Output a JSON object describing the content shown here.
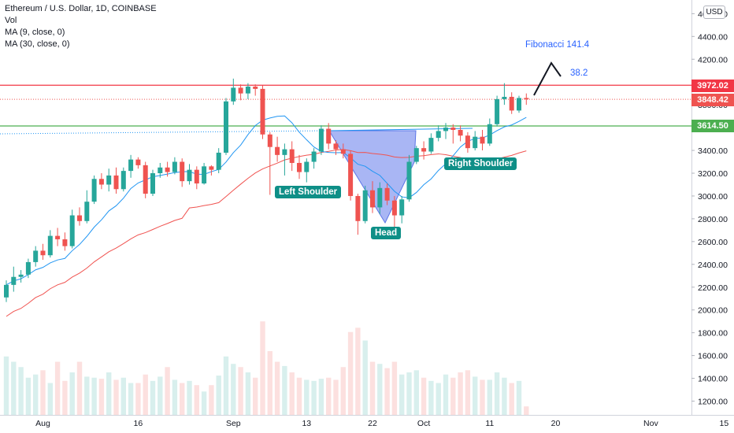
{
  "legend": {
    "title": "Ethereum / U.S. Dollar, 1D, COINBASE",
    "vol": "Vol",
    "ma9": "MA (9, close, 0)",
    "ma30": "MA (30, close, 0)"
  },
  "currency_button": "USD",
  "price_labels": {
    "red": "3972.02",
    "current": "3848.42",
    "green": "3614.50"
  },
  "annotations": {
    "left_shoulder": "Left Shoulder",
    "head": "Head",
    "right_shoulder": "Right Shoulder",
    "fib_main": "Fibonacci 141.4",
    "fib_small": "38.2"
  },
  "colors": {
    "up": "#26a69a",
    "down": "#ef5350",
    "ma9": "#2196f3",
    "ma30": "#f05350",
    "resistance": "#f23645",
    "support": "#4caf50",
    "pattern_fill": "#8c9ef0",
    "label_teal": "#0e8f87"
  },
  "chart_data": {
    "type": "candlestick",
    "symbol": "Ethereum / U.S. Dollar",
    "interval": "1D",
    "exchange": "COINBASE",
    "x_tick_labels": [
      "Aug",
      "16",
      "Sep",
      "13",
      "22",
      "Oct",
      "11",
      "20",
      "Nov",
      "15"
    ],
    "y_tick_labels": [
      "1200.00",
      "1400.00",
      "1600.00",
      "1800.00",
      "2000.00",
      "2200.00",
      "2400.00",
      "2600.00",
      "2800.00",
      "3000.00",
      "3200.00",
      "3400.00",
      "3600.00",
      "3800.00",
      "4000.00",
      "4200.00",
      "4400.00",
      "4600.00"
    ],
    "ylim": [
      1100,
      4650
    ],
    "ohlc": [
      [
        2110,
        2260,
        2070,
        2220
      ],
      [
        2220,
        2380,
        2160,
        2290
      ],
      [
        2290,
        2350,
        2240,
        2310
      ],
      [
        2310,
        2450,
        2280,
        2420
      ],
      [
        2420,
        2560,
        2380,
        2520
      ],
      [
        2520,
        2580,
        2440,
        2480
      ],
      [
        2480,
        2700,
        2460,
        2650
      ],
      [
        2650,
        2720,
        2560,
        2620
      ],
      [
        2620,
        2680,
        2520,
        2560
      ],
      [
        2560,
        2880,
        2540,
        2830
      ],
      [
        2830,
        2900,
        2740,
        2780
      ],
      [
        2780,
        3050,
        2760,
        2950
      ],
      [
        2950,
        3180,
        2930,
        3150
      ],
      [
        3150,
        3200,
        3060,
        3100
      ],
      [
        3100,
        3240,
        3040,
        3180
      ],
      [
        3180,
        3250,
        3020,
        3060
      ],
      [
        3060,
        3250,
        3040,
        3220
      ],
      [
        3220,
        3360,
        3160,
        3320
      ],
      [
        3320,
        3340,
        3240,
        3270
      ],
      [
        3270,
        3300,
        2980,
        3020
      ],
      [
        3020,
        3230,
        3000,
        3200
      ],
      [
        3200,
        3290,
        3160,
        3250
      ],
      [
        3250,
        3300,
        3170,
        3210
      ],
      [
        3210,
        3340,
        3190,
        3300
      ],
      [
        3300,
        3330,
        3080,
        3130
      ],
      [
        3130,
        3280,
        3100,
        3230
      ],
      [
        3230,
        3260,
        3060,
        3110
      ],
      [
        3110,
        3290,
        3100,
        3260
      ],
      [
        3260,
        3270,
        3180,
        3230
      ],
      [
        3230,
        3420,
        3200,
        3380
      ],
      [
        3380,
        3860,
        3360,
        3830
      ],
      [
        3830,
        4030,
        3800,
        3950
      ],
      [
        3950,
        3980,
        3840,
        3900
      ],
      [
        3900,
        3990,
        3850,
        3960
      ],
      [
        3960,
        3980,
        3880,
        3940
      ],
      [
        3940,
        3970,
        3500,
        3540
      ],
      [
        3540,
        3560,
        3010,
        3430
      ],
      [
        3430,
        3520,
        3300,
        3360
      ],
      [
        3360,
        3460,
        3180,
        3410
      ],
      [
        3410,
        3480,
        3220,
        3290
      ],
      [
        3290,
        3360,
        3150,
        3210
      ],
      [
        3210,
        3330,
        3120,
        3300
      ],
      [
        3300,
        3420,
        3240,
        3390
      ],
      [
        3390,
        3620,
        3360,
        3590
      ],
      [
        3590,
        3640,
        3410,
        3460
      ],
      [
        3460,
        3490,
        3360,
        3410
      ],
      [
        3410,
        3460,
        3330,
        3370
      ],
      [
        3370,
        3400,
        2960,
        3000
      ],
      [
        3000,
        3020,
        2660,
        2780
      ],
      [
        2780,
        3090,
        2760,
        3050
      ],
      [
        3050,
        3130,
        2850,
        2900
      ],
      [
        2900,
        3120,
        2840,
        3070
      ],
      [
        3070,
        3110,
        2920,
        2960
      ],
      [
        2960,
        3000,
        2730,
        2830
      ],
      [
        2830,
        3000,
        2760,
        2970
      ],
      [
        2970,
        3360,
        2950,
        3300
      ],
      [
        3300,
        3440,
        3280,
        3420
      ],
      [
        3420,
        3480,
        3320,
        3390
      ],
      [
        3390,
        3550,
        3370,
        3510
      ],
      [
        3510,
        3620,
        3480,
        3570
      ],
      [
        3570,
        3640,
        3500,
        3600
      ],
      [
        3600,
        3630,
        3460,
        3580
      ],
      [
        3580,
        3620,
        3480,
        3530
      ],
      [
        3530,
        3560,
        3380,
        3420
      ],
      [
        3420,
        3570,
        3400,
        3520
      ],
      [
        3520,
        3580,
        3400,
        3460
      ],
      [
        3460,
        3680,
        3440,
        3630
      ],
      [
        3630,
        3880,
        3610,
        3850
      ],
      [
        3850,
        3990,
        3800,
        3870
      ],
      [
        3870,
        3910,
        3720,
        3750
      ],
      [
        3750,
        3880,
        3730,
        3860
      ],
      [
        3860,
        3900,
        3800,
        3848.42
      ]
    ],
    "volume_relative": [
      0.55,
      0.5,
      0.45,
      0.35,
      0.38,
      0.42,
      0.3,
      0.5,
      0.32,
      0.4,
      0.5,
      0.36,
      0.35,
      0.34,
      0.4,
      0.33,
      0.35,
      0.3,
      0.3,
      0.38,
      0.32,
      0.36,
      0.45,
      0.33,
      0.3,
      0.32,
      0.28,
      0.22,
      0.28,
      0.37,
      0.55,
      0.48,
      0.45,
      0.4,
      0.35,
      0.88,
      0.6,
      0.5,
      0.46,
      0.4,
      0.35,
      0.33,
      0.32,
      0.34,
      0.35,
      0.33,
      0.45,
      0.78,
      0.82,
      0.7,
      0.5,
      0.48,
      0.44,
      0.5,
      0.38,
      0.4,
      0.42,
      0.35,
      0.32,
      0.3,
      0.38,
      0.35,
      0.4,
      0.42,
      0.36,
      0.33,
      0.33,
      0.4,
      0.35,
      0.3,
      0.32,
      0.08
    ],
    "lines": {
      "resistance": 3972.02,
      "current": 3848.42,
      "support": 3614.5
    }
  }
}
